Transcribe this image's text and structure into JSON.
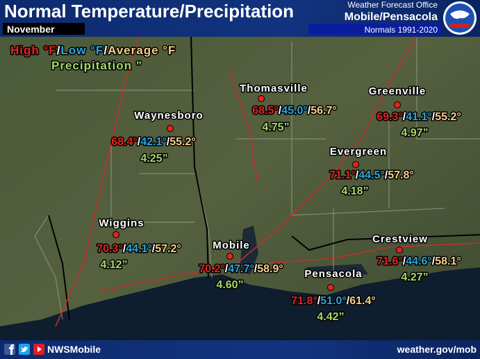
{
  "header": {
    "title": "Normal Temperature/Precipitation",
    "month": "November",
    "office_line1": "Weather Forecast Office",
    "office_line2": "Mobile/Pensacola",
    "normals": "Normals 1991-2020"
  },
  "legend": {
    "high": "High °F",
    "low": "Low °F",
    "average": "Average °F",
    "separator": "/",
    "precipitation": "Precipitation ”"
  },
  "stations": [
    {
      "name": "Thomasville",
      "high": "68.5°",
      "low": "45.0°",
      "average": "56.7°",
      "precipitation": "4.75”"
    },
    {
      "name": "Greenville",
      "high": "69.3°",
      "low": "41.1°",
      "average": "55.2°",
      "precipitation": "4.97”"
    },
    {
      "name": "Waynesboro",
      "high": "68.4°",
      "low": "42.1°",
      "average": "55.2°",
      "precipitation": "4.25”"
    },
    {
      "name": "Evergreen",
      "high": "71.1°",
      "low": "44.5°",
      "average": "57.8°",
      "precipitation": "4.18”"
    },
    {
      "name": "Wiggins",
      "high": "70.3°",
      "low": "44.1°",
      "average": "57.2°",
      "precipitation": "4.12”"
    },
    {
      "name": "Mobile",
      "high": "70.2°",
      "low": "47.7°",
      "average": "58.9°",
      "precipitation": "4.60”"
    },
    {
      "name": "Pensacola",
      "high": "71.8°",
      "low": "51.0°",
      "average": "61.4°",
      "precipitation": "4.42”"
    },
    {
      "name": "Crestview",
      "high": "71.6°",
      "low": "44.6°",
      "average": "58.1°",
      "precipitation": "4.27”"
    }
  ],
  "footer": {
    "handle": "NWSMobile",
    "url": "weather.gov/mob"
  }
}
